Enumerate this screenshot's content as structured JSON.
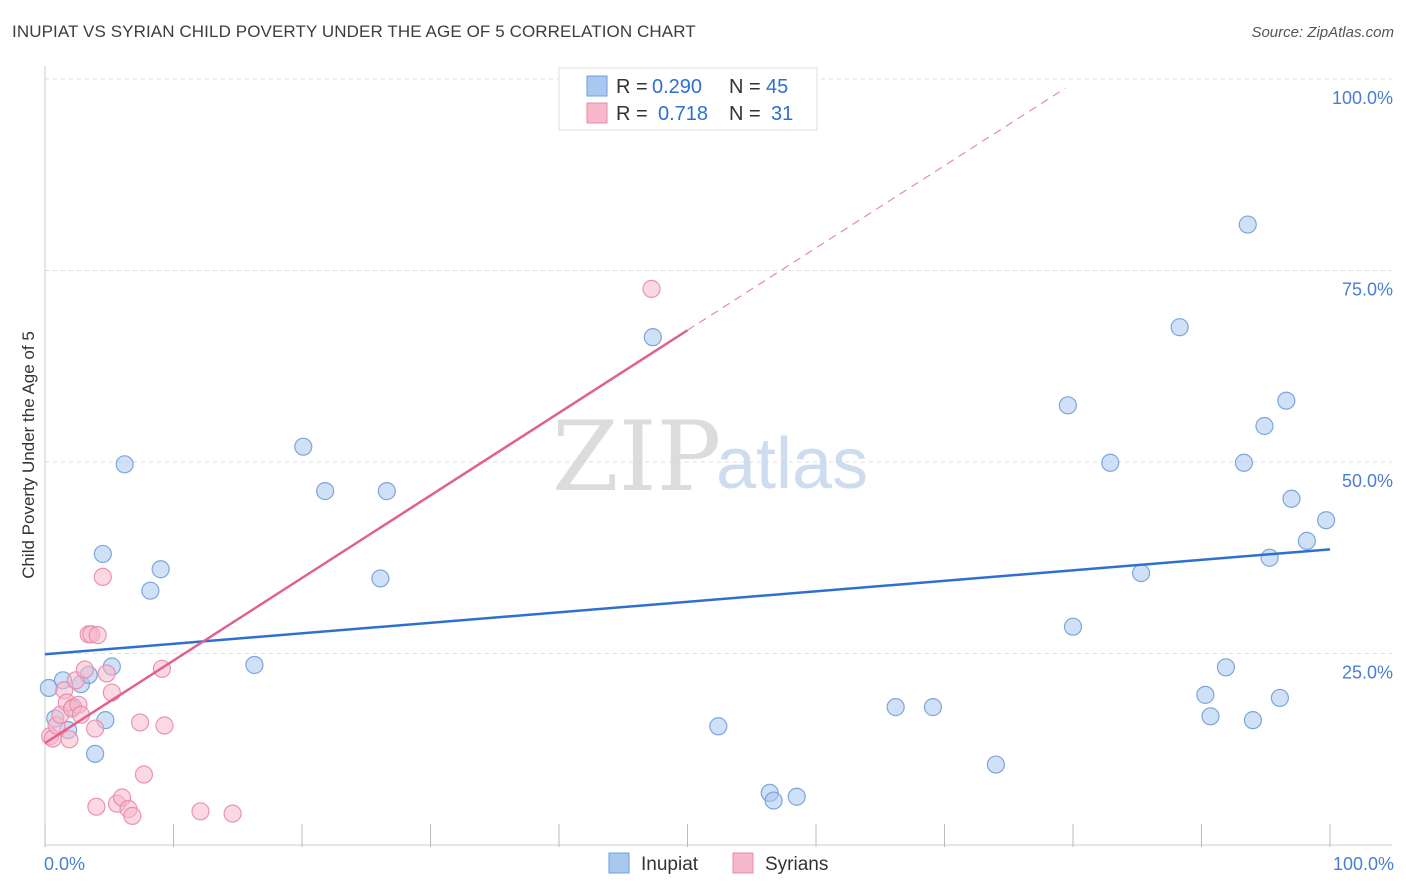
{
  "title": "INUPIAT VS SYRIAN CHILD POVERTY UNDER THE AGE OF 5 CORRELATION CHART",
  "source": "Source: ZipAtlas.com",
  "watermark": {
    "zip": "ZIP",
    "atlas": "atlas"
  },
  "colors": {
    "inupiat_fill": "#a9c8f0",
    "inupiat_stroke": "#6f9fd8",
    "inupiat_line": "#2f6fd0",
    "syrians_fill": "#f7b8cb",
    "syrians_stroke": "#e88aa8",
    "syrians_line": "#e0608e",
    "tick_text": "#4a7ecf",
    "grid": "#dddddd"
  },
  "legend": {
    "rows": [
      {
        "r_label": "R = ",
        "r_value": "0.290",
        "n_label": "N = ",
        "n_value": "45"
      },
      {
        "r_label": "R = ",
        "r_value": "0.718",
        "n_label": "N = ",
        "n_value": "31"
      }
    ]
  },
  "chart_data": {
    "type": "scatter",
    "title": "INUPIAT VS SYRIAN CHILD POVERTY UNDER THE AGE OF 5 CORRELATION CHART",
    "xlabel": "",
    "ylabel": "Child Poverty Under the Age of 5",
    "xlim": [
      0,
      100
    ],
    "ylim": [
      0,
      100
    ],
    "x_tick_labels": [
      "0.0%",
      "100.0%"
    ],
    "y_ticks": [
      25,
      50,
      75,
      100
    ],
    "y_tick_labels": [
      "25.0%",
      "50.0%",
      "75.0%",
      "100.0%"
    ],
    "legend_position": "bottom-center",
    "series": [
      {
        "name": "Inupiat",
        "r": 0.29,
        "n": 45,
        "trend": {
          "x0": 0,
          "y0": 24.9,
          "x1": 100,
          "y1": 38.6
        },
        "points": [
          [
            0.3,
            20.5
          ],
          [
            0.8,
            16.5
          ],
          [
            1.4,
            21.5
          ],
          [
            1.8,
            15.0
          ],
          [
            2.2,
            18.0
          ],
          [
            2.8,
            21.0
          ],
          [
            3.4,
            22.2
          ],
          [
            3.9,
            11.9
          ],
          [
            4.5,
            38.0
          ],
          [
            4.7,
            16.3
          ],
          [
            5.2,
            23.3
          ],
          [
            6.2,
            49.7
          ],
          [
            8.2,
            33.2
          ],
          [
            9.0,
            36.0
          ],
          [
            16.3,
            23.5
          ],
          [
            20.1,
            52.0
          ],
          [
            21.8,
            46.2
          ],
          [
            26.1,
            34.8
          ],
          [
            26.6,
            46.2
          ],
          [
            47.3,
            66.3
          ],
          [
            52.4,
            15.5
          ],
          [
            56.4,
            6.8
          ],
          [
            56.7,
            5.8
          ],
          [
            58.5,
            6.3
          ],
          [
            66.2,
            18.0
          ],
          [
            69.1,
            18.0
          ],
          [
            74.0,
            10.5
          ],
          [
            79.6,
            57.4
          ],
          [
            80.0,
            28.5
          ],
          [
            82.9,
            49.9
          ],
          [
            85.3,
            35.5
          ],
          [
            88.3,
            67.6
          ],
          [
            90.3,
            19.6
          ],
          [
            90.7,
            16.8
          ],
          [
            91.9,
            23.2
          ],
          [
            93.3,
            49.9
          ],
          [
            93.6,
            81.0
          ],
          [
            94.0,
            16.3
          ],
          [
            94.9,
            54.7
          ],
          [
            95.3,
            37.5
          ],
          [
            96.1,
            19.2
          ],
          [
            96.6,
            58.0
          ],
          [
            97.0,
            45.2
          ],
          [
            98.2,
            39.7
          ],
          [
            99.7,
            42.4
          ]
        ]
      },
      {
        "name": "Syrians",
        "r": 0.718,
        "n": 31,
        "trend": {
          "x0": 0,
          "y0": 13.3,
          "x1": 50,
          "y1": 67.2
        },
        "trend_dashed": {
          "x0": 50,
          "y0": 67.2,
          "x1": 79.4,
          "y1": 98.8
        },
        "points": [
          [
            0.4,
            14.2
          ],
          [
            0.6,
            13.9
          ],
          [
            0.9,
            15.6
          ],
          [
            1.2,
            17.0
          ],
          [
            1.5,
            20.2
          ],
          [
            1.7,
            18.6
          ],
          [
            1.9,
            13.8
          ],
          [
            2.1,
            17.8
          ],
          [
            2.4,
            21.5
          ],
          [
            2.6,
            18.3
          ],
          [
            2.8,
            17.0
          ],
          [
            3.1,
            22.9
          ],
          [
            3.4,
            27.5
          ],
          [
            3.6,
            27.5
          ],
          [
            3.9,
            15.2
          ],
          [
            4.0,
            5.0
          ],
          [
            4.1,
            27.4
          ],
          [
            4.5,
            35.0
          ],
          [
            4.8,
            22.4
          ],
          [
            5.2,
            19.9
          ],
          [
            5.6,
            5.4
          ],
          [
            6.0,
            6.2
          ],
          [
            6.5,
            4.7
          ],
          [
            6.8,
            3.8
          ],
          [
            7.4,
            16.0
          ],
          [
            7.7,
            9.2
          ],
          [
            9.1,
            23.0
          ],
          [
            9.3,
            15.6
          ],
          [
            12.1,
            4.4
          ],
          [
            14.6,
            4.1
          ],
          [
            47.2,
            72.6
          ]
        ]
      }
    ]
  },
  "bottom_legend": [
    {
      "label": "Inupiat"
    },
    {
      "label": "Syrians"
    }
  ]
}
